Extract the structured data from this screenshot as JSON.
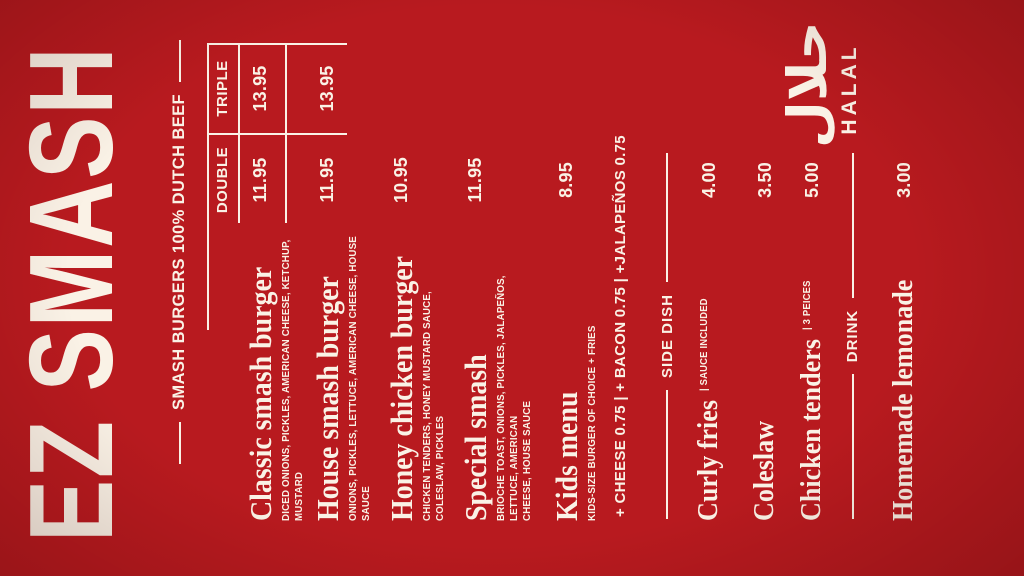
{
  "brand": {
    "logo": "EZ SMASH",
    "tagline": "SMASH BURGERS 100% DUTCH BEEF"
  },
  "colors": {
    "background": "#b81a1f",
    "text": "#faf2e6"
  },
  "price_table": {
    "columns": {
      "double": "DOUBLE",
      "triple": "TRIPLE"
    }
  },
  "burgers": [
    {
      "name": "Classic smash burger",
      "desc": "DICED ONIONS, PICKLES, AMERICAN CHEESE, KETCHUP, MUSTARD",
      "double": "11.95",
      "triple": "13.95"
    },
    {
      "name": "House smash burger",
      "desc": "ONIONS, PICKLES, LETTUCE, AMERICAN CHEESE, HOUSE SAUCE",
      "double": "11.95",
      "triple": "13.95"
    },
    {
      "name": "Honey chicken burger",
      "desc": "CHICKEN TENDERS, HONEY MUSTARD SAUCE, COLESLAW, PICKLES",
      "double": "10.95",
      "triple": ""
    },
    {
      "name": "Special smash",
      "desc": "BRIOCHE TOAST, ONIONS, PICKLES, JALAPEÑOS, LETTUCE, AMERICAN\nCHEESE, HOUSE SAUCE",
      "double": "11.95",
      "triple": ""
    },
    {
      "name": "Kids menu",
      "desc": "KIDS-SIZE BURGER OF CHOICE + FRIES",
      "double": "8.95",
      "triple": ""
    }
  ],
  "extras_line": "+ CHEESE 0.75  |  + BACON 0.75  |  +JALAPEÑOS 0.75",
  "sections": {
    "side_dish": "SIDE DISH",
    "drink": "DRINK"
  },
  "side_dishes": [
    {
      "name": "Curly fries",
      "qualifier": "| SAUCE INCLUDED",
      "price": "4.00"
    },
    {
      "name": "Coleslaw",
      "qualifier": "",
      "price": "3.50"
    },
    {
      "name": "Chicken tenders",
      "qualifier": "| 3 PEICES",
      "price": "5.00"
    }
  ],
  "drinks": [
    {
      "name": "Homemade lemonade",
      "qualifier": "",
      "price": "3.00"
    }
  ],
  "halal": {
    "arabic": "حلال",
    "label": "HALAL"
  }
}
